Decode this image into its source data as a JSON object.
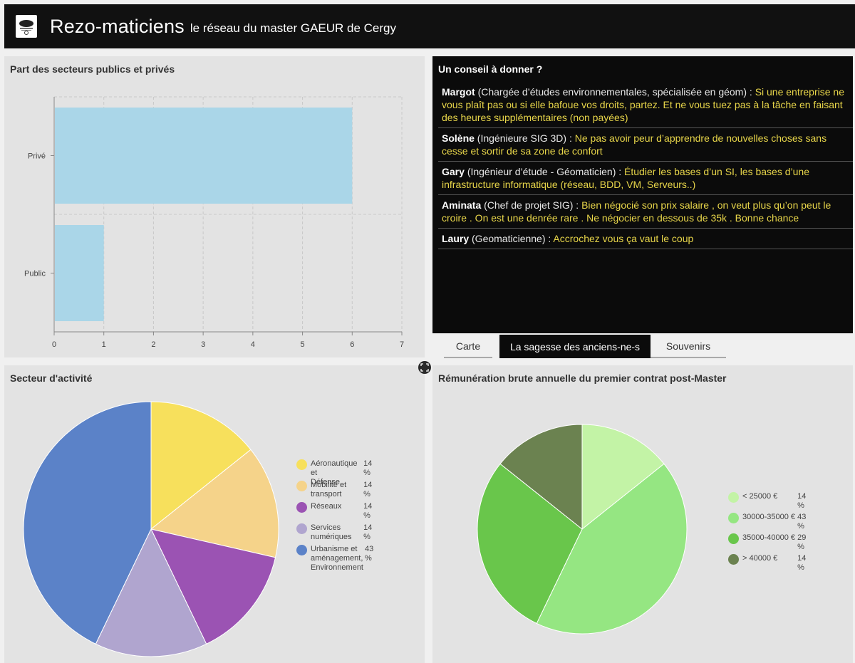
{
  "header": {
    "title": "Rezo-maticiens",
    "subtitle": "le réseau du master GAEUR de Cergy"
  },
  "bar_panel": {
    "title": "Part des secteurs publics et privés"
  },
  "advice_panel": {
    "title": "Un conseil à donner ?",
    "items": [
      {
        "name": "Margot",
        "role": "(Chargée d’études environnementales, spécialisée en géom) : ",
        "text": "Si une entreprise ne vous plaît pas ou si elle bafoue vos droits, partez. Et ne vous tuez pas à la tâche en faisant des heures supplémentaires (non payées)"
      },
      {
        "name": "Solène",
        "role": "(Ingénieure SIG 3D) : ",
        "text": "Ne pas avoir peur d’apprendre de nouvelles choses sans cesse et sortir de sa zone de confort"
      },
      {
        "name": "Gary",
        "role": "(Ingénieur d’étude - Géomaticien) : ",
        "text": "Étudier les bases d’un SI, les bases d’une infrastructure informatique (réseau, BDD, VM, Serveurs..)"
      },
      {
        "name": "Aminata",
        "role": "(Chef de projet SIG) : ",
        "text": "Bien négocié son prix salaire , on veut plus qu’on peut le croire . On est une denrée rare . Ne négocier en dessous de 35k . Bonne chance"
      },
      {
        "name": "Laury",
        "role": "(Geomaticienne) : ",
        "text": "Accrochez vous ça vaut le coup"
      }
    ]
  },
  "tabs": [
    {
      "label": "Carte"
    },
    {
      "label": "La sagesse des anciens-ne-s"
    },
    {
      "label": "Souvenirs"
    }
  ],
  "sector_panel": {
    "title": "Secteur d'activité"
  },
  "salary_panel": {
    "title": "Rémunération brute annuelle du premier contrat post-Master"
  },
  "icons": {
    "logo": "association-logo-icon",
    "expand": "expand-icon"
  },
  "colors": {
    "header_bg": "#111111",
    "bar_fill": "#aad6e8",
    "advice_text": "#e8d64a"
  },
  "chart_data": [
    {
      "type": "bar",
      "orientation": "horizontal",
      "title": "Part des secteurs publics et privés",
      "categories": [
        "Privé",
        "Public"
      ],
      "values": [
        6,
        1
      ],
      "xlim": [
        0,
        7
      ],
      "xticks": [
        "0",
        "1",
        "2",
        "3",
        "4",
        "5",
        "6",
        "7"
      ],
      "grid": true,
      "color": "#aad6e8"
    },
    {
      "type": "pie",
      "title": "Secteur d'activité",
      "slices": [
        {
          "label": [
            "Aéronautique et",
            "Défense"
          ],
          "pct_label": "14 %",
          "value": 1,
          "color": "#f7e05c"
        },
        {
          "label": [
            "Mobilité et",
            "transport"
          ],
          "pct_label": "14 %",
          "value": 1,
          "color": "#f5d38a"
        },
        {
          "label": [
            "Réseaux"
          ],
          "pct_label": "14 %",
          "value": 1,
          "color": "#9b53b3"
        },
        {
          "label": [
            "Services",
            "numériques"
          ],
          "pct_label": "14 %",
          "value": 1,
          "color": "#b0a5cf"
        },
        {
          "label": [
            "Urbanisme et",
            "aménagement,",
            "Environnement"
          ],
          "pct_label": "43 %",
          "value": 3,
          "color": "#5b82c8"
        }
      ],
      "legend": "right"
    },
    {
      "type": "pie",
      "title": "Rémunération brute annuelle du premier contrat post-Master",
      "slices": [
        {
          "label": [
            "< 25000 €"
          ],
          "pct_label": "14 %",
          "value": 1,
          "color": "#c3f3a6"
        },
        {
          "label": [
            "30000-35000 €"
          ],
          "pct_label": "43 %",
          "value": 3,
          "color": "#95e682"
        },
        {
          "label": [
            "35000-40000 €"
          ],
          "pct_label": "29 %",
          "value": 2,
          "color": "#69c64b"
        },
        {
          "label": [
            "> 40000 €"
          ],
          "pct_label": "14 %",
          "value": 1,
          "color": "#6b8250"
        }
      ],
      "legend": "right"
    }
  ]
}
